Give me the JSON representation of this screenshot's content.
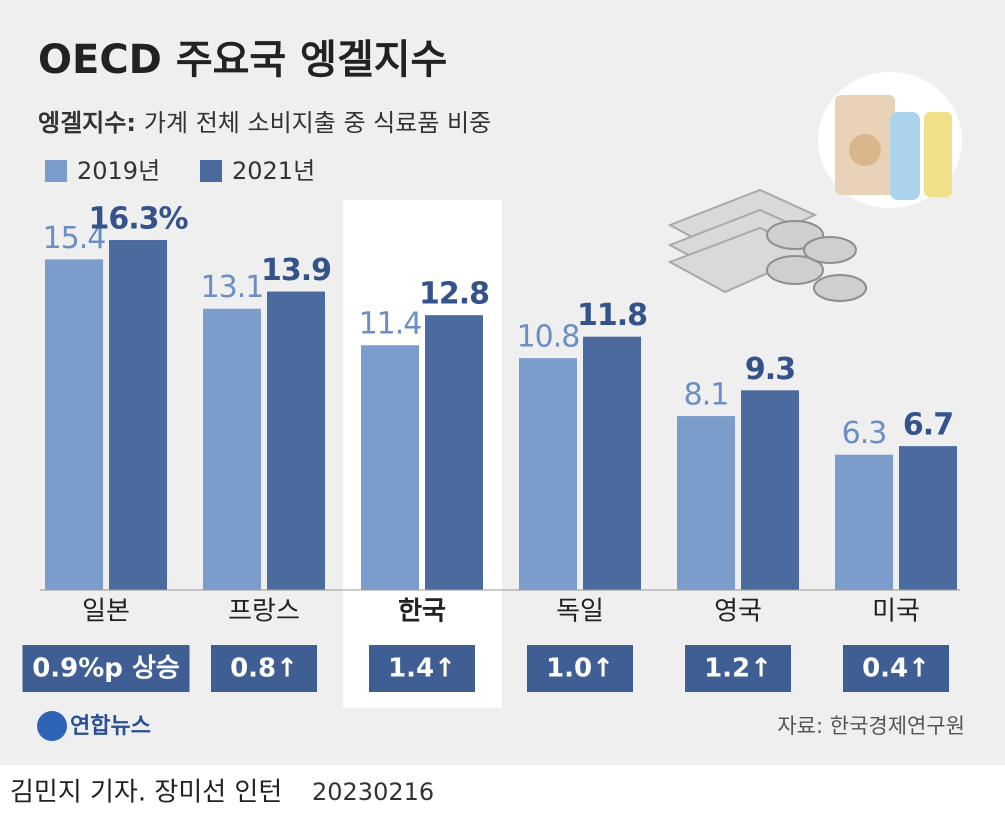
{
  "chart_data": {
    "type": "bar",
    "title": "OECD 주요국 엥겔지수",
    "subtitle_label": "엥겔지수:",
    "subtitle": "가계 전체 소비지출 중 식료품 비중",
    "categories": [
      "일본",
      "프랑스",
      "한국",
      "독일",
      "영국",
      "미국"
    ],
    "highlight_index": 2,
    "series": [
      {
        "name": "2019년",
        "color": "#7a9dcb",
        "label_color": "#6b8fc4",
        "values": [
          15.4,
          13.1,
          11.4,
          10.8,
          8.1,
          6.3
        ]
      },
      {
        "name": "2021년",
        "color": "#4b6b9f",
        "label_color": "#34538a",
        "values": [
          16.3,
          13.9,
          12.8,
          11.8,
          9.3,
          6.7
        ],
        "value_labels": [
          "16.3%",
          "13.9",
          "12.8",
          "11.8",
          "9.3",
          "6.7"
        ]
      }
    ],
    "changes": [
      "0.9%p 상승",
      "0.8↑",
      "1.4↑",
      "1.0↑",
      "1.2↑",
      "0.4↑"
    ],
    "change_color": "#3f5e93",
    "source": "자료: 한국경제연구원",
    "logo": "연합뉴스",
    "credit": "김민지 기자. 장미선 인턴",
    "date": "20230216"
  }
}
